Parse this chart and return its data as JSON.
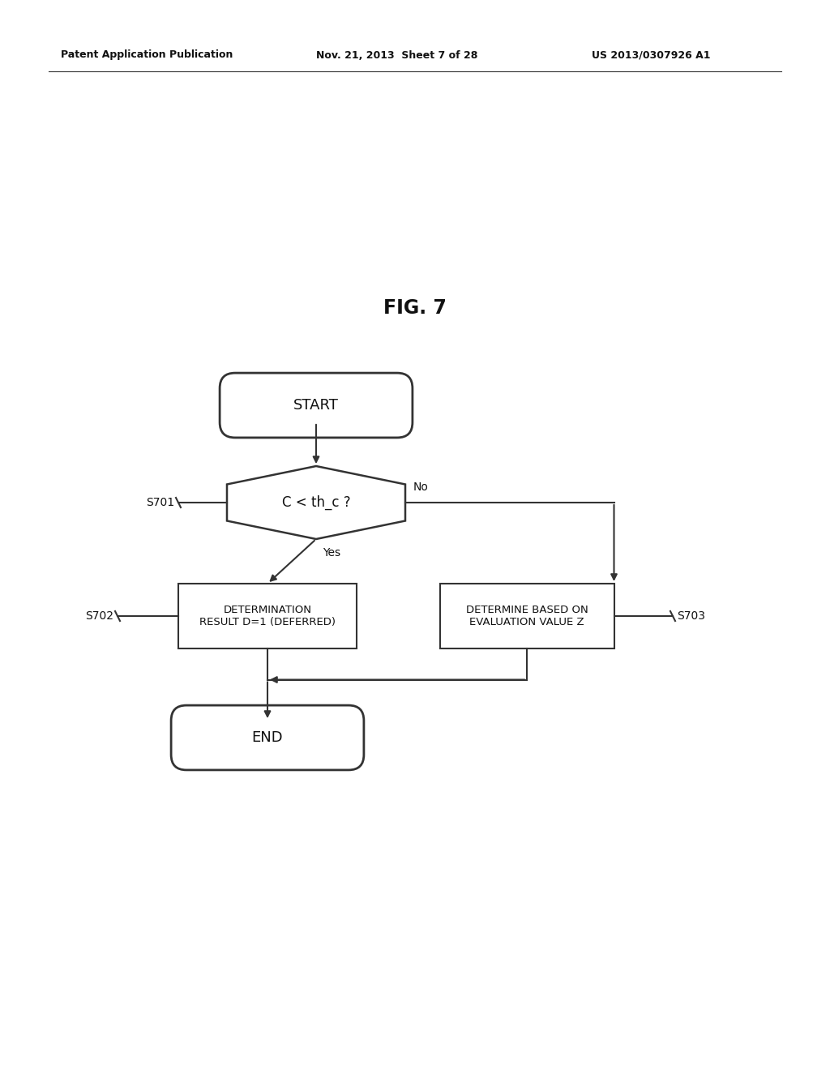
{
  "background_color": "#ffffff",
  "header_left": "Patent Application Publication",
  "header_mid": "Nov. 21, 2013  Sheet 7 of 28",
  "header_right": "US 2013/0307926 A1",
  "fig_label": "FIG. 7",
  "line_color": "#333333",
  "text_color": "#111111",
  "font_family": "Arial"
}
